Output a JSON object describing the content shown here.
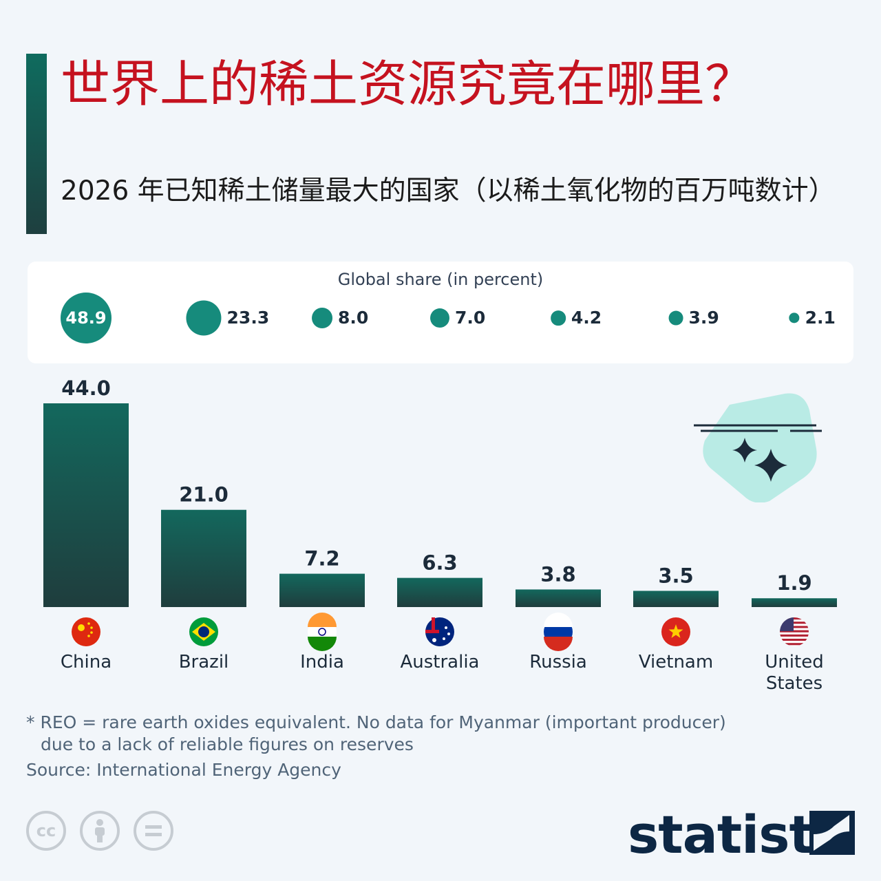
{
  "title": "世界上的稀土资源究竟在哪里？",
  "subtitle": "2026 年已知稀土储量最大的国家（以稀土氧化物的百万吨数计）",
  "global_share": {
    "title": "Global share (in percent)",
    "items": [
      {
        "value": "48.9"
      },
      {
        "value": "23.3"
      },
      {
        "value": "8.0"
      },
      {
        "value": "7.0"
      },
      {
        "value": "4.2"
      },
      {
        "value": "3.9"
      },
      {
        "value": "2.1"
      }
    ]
  },
  "chart_data": {
    "type": "bar",
    "categories": [
      "China",
      "Brazil",
      "India",
      "Australia",
      "Russia",
      "Vietnam",
      "United States"
    ],
    "values": [
      44.0,
      21.0,
      7.2,
      6.3,
      3.8,
      3.5,
      1.9
    ],
    "global_share_percent": [
      48.9,
      23.3,
      8.0,
      7.0,
      4.2,
      3.9,
      2.1
    ],
    "title": "世界上的稀土资源究竟在哪里？",
    "xlabel": "",
    "ylabel": "",
    "ylim": [
      0,
      44
    ],
    "grid": false,
    "legend": "none",
    "bar_color_top": "#13685d",
    "bar_color_bottom": "#1f3d3d"
  },
  "footnote": {
    "line1": "* REO = rare earth oxides equivalent. No data for Myanmar (important producer)",
    "line2": "due to a lack of reliable figures on reserves"
  },
  "source": "Source: International Energy Agency",
  "brand": "statista",
  "license_icons": [
    "cc-icon",
    "by-icon",
    "nd-icon"
  ],
  "colors": {
    "title": "#c5121f",
    "accent": "#168b7c",
    "text_dark": "#1c2b3a",
    "muted": "#506478"
  }
}
